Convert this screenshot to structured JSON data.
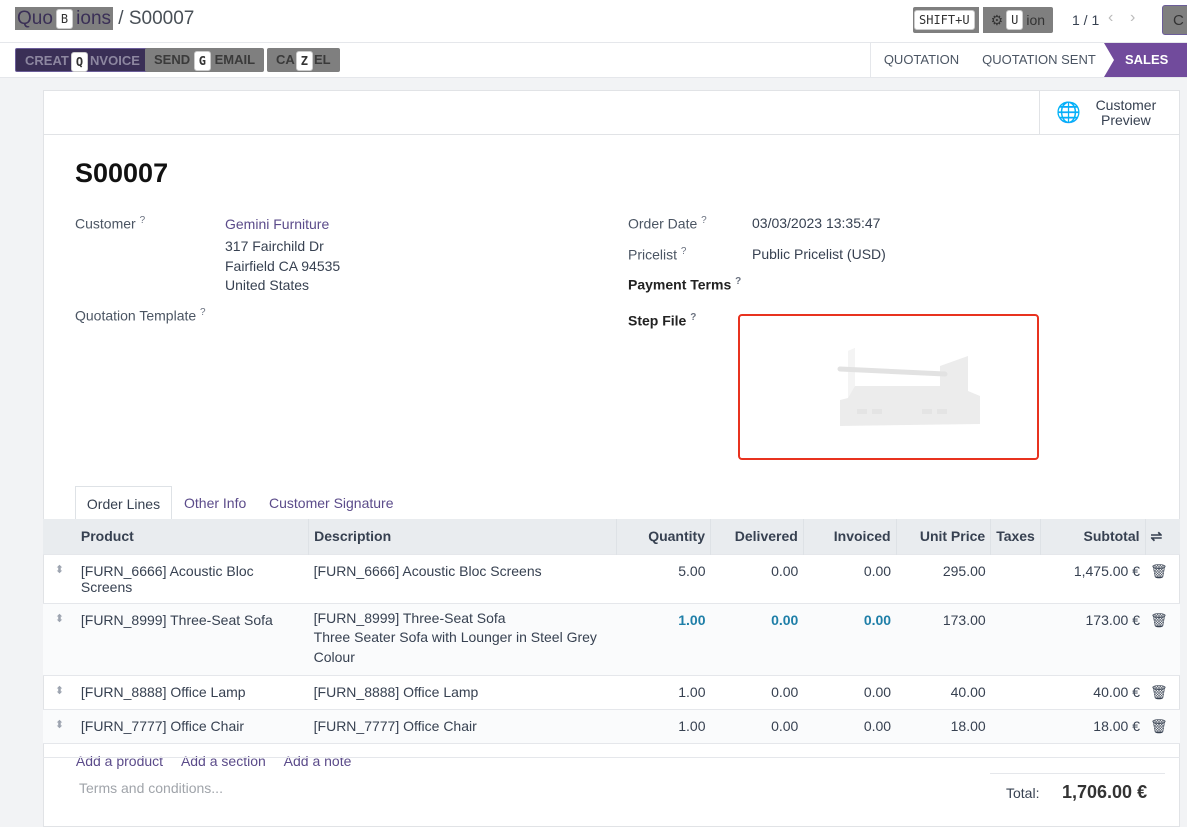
{
  "breadcrumb": {
    "parent": "Quotations",
    "parent_visible": "Quo",
    "parent_visible_end": "ions",
    "current": "S00007",
    "hotkey": "B"
  },
  "toolbar": {
    "shift_hint": "SHIFT+U",
    "action_label": "Action",
    "action_hotkey": "U",
    "pager": "1 / 1",
    "right_button": "C"
  },
  "actions": [
    {
      "label_start": "CREAT",
      "label_end": "NVOICE",
      "hotkey": "Q",
      "label": "CREATE INVOICE"
    },
    {
      "label_start": "SEND",
      "label_end": "EMAIL",
      "hotkey": "G",
      "label": "SEND BY EMAIL"
    },
    {
      "label_start": "CA",
      "label_end": "EL",
      "hotkey": "Z",
      "label": "CANCEL"
    }
  ],
  "stages": {
    "items": [
      "QUOTATION",
      "QUOTATION SENT",
      "SALES ORDER"
    ],
    "active": "SALES ORDER"
  },
  "customer_preview": "Customer Preview",
  "record": {
    "name": "S00007",
    "customer_label": "Customer",
    "customer": "Gemini Furniture",
    "address": [
      "317 Fairchild Dr",
      "Fairfield CA 94535",
      "United States"
    ],
    "template_label": "Quotation Template",
    "order_date_label": "Order Date",
    "order_date": "03/03/2023 13:35:47",
    "pricelist_label": "Pricelist",
    "pricelist": "Public Pricelist (USD)",
    "payment_terms_label": "Payment Terms",
    "step_file_label": "Step File",
    "help": "?"
  },
  "tabs": [
    "Order Lines",
    "Other Info",
    "Customer Signature"
  ],
  "table": {
    "headers": [
      "Product",
      "Description",
      "Quantity",
      "Delivered",
      "Invoiced",
      "Unit Price",
      "Taxes",
      "Subtotal"
    ],
    "rows": [
      {
        "product": "[FURN_6666] Acoustic Bloc Screens",
        "description": [
          "[FURN_6666] Acoustic Bloc Screens"
        ],
        "quantity": "5.00",
        "delivered": "0.00",
        "invoiced": "0.00",
        "unit_price": "295.00",
        "taxes": "",
        "subtotal": "1,475.00 €"
      },
      {
        "product": "[FURN_8999] Three-Seat Sofa",
        "description": [
          "[FURN_8999] Three-Seat Sofa",
          "Three Seater Sofa with Lounger in Steel Grey",
          "Colour"
        ],
        "quantity": "1.00",
        "delivered": "0.00",
        "invoiced": "0.00",
        "unit_price": "173.00",
        "taxes": "",
        "subtotal": "173.00 €"
      },
      {
        "product": "[FURN_8888] Office Lamp",
        "description": [
          "[FURN_8888] Office Lamp"
        ],
        "quantity": "1.00",
        "delivered": "0.00",
        "invoiced": "0.00",
        "unit_price": "40.00",
        "taxes": "",
        "subtotal": "40.00 €"
      },
      {
        "product": "[FURN_7777] Office Chair",
        "description": [
          "[FURN_7777] Office Chair"
        ],
        "quantity": "1.00",
        "delivered": "0.00",
        "invoiced": "0.00",
        "unit_price": "18.00",
        "taxes": "",
        "subtotal": "18.00 €"
      }
    ],
    "add_product": "Add a product",
    "add_section": "Add a section",
    "add_note": "Add a note"
  },
  "terms_placeholder": "Terms and conditions...",
  "total_label": "Total:",
  "total": "1,706.00 €",
  "colors": {
    "primary": "#714b9c",
    "link": "#5b4b8a",
    "highlight": "#1f7fa8",
    "step_border": "#e8321f"
  }
}
